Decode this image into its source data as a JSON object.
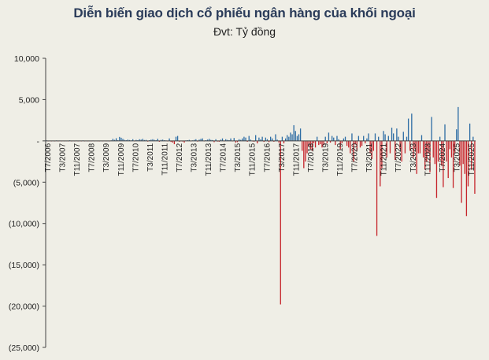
{
  "header": {
    "title": "Diễn biến giao dịch cổ phiếu ngân hàng của khối ngoại",
    "subtitle": "Đvt: Tỷ đồng"
  },
  "colors": {
    "background": "#efeee6",
    "positive": "#2e6da4",
    "negative": "#c6242b",
    "title": "#2b3c5a"
  },
  "chart_data": {
    "type": "bar",
    "title": "Diễn biến giao dịch cổ phiếu ngân hàng của khối ngoại",
    "subtitle": "Đvt: Tỷ đồng",
    "xlabel": "",
    "ylabel": "",
    "ylim": [
      -25000,
      10000
    ],
    "yticks": [
      10000,
      5000,
      0,
      -5000,
      -10000,
      -15000,
      -20000,
      -25000
    ],
    "ytick_labels": [
      "10,000",
      "5,000",
      "-",
      "(5,000)",
      "(10,000)",
      "(15,000)",
      "(20,000)",
      "(25,000)"
    ],
    "grid": false,
    "legend": "none",
    "x_tick_labels": [
      "T7/2006",
      "T3/2007",
      "T11/2007",
      "T7/2008",
      "T3/2009",
      "T11/2009",
      "T7/2010",
      "T3/2011",
      "T11/2011",
      "T7/2012",
      "T3/2013",
      "T11/2013",
      "T7/2014",
      "T3/2015",
      "T11/2015",
      "T7/2016",
      "T3/2017",
      "T11/2017",
      "T7/2018",
      "T3/2019",
      "T11/2019",
      "T7/2020",
      "T3/2021",
      "T11/2021",
      "T7/2022",
      "T3/2023",
      "T11/2023",
      "T7/2024",
      "T3/2025",
      "T11/2025"
    ],
    "series": [
      {
        "values": [
          60,
          -40,
          30,
          -60,
          20,
          -30,
          50,
          -20,
          40,
          -50,
          30,
          -10,
          20,
          -40,
          60,
          -30,
          20,
          -20,
          40,
          -60,
          30,
          -10,
          50,
          -40,
          20,
          -30,
          10,
          -50,
          40,
          -20,
          30,
          -10,
          -30,
          20,
          -50,
          30,
          -40,
          10,
          -20,
          60,
          250,
          120,
          320,
          80,
          480,
          380,
          250,
          120,
          80,
          150,
          100,
          60,
          200,
          -50,
          120,
          80,
          200,
          150,
          250,
          100,
          120,
          -80,
          80,
          150,
          200,
          120,
          80,
          260,
          -100,
          120,
          150,
          80,
          50,
          -60,
          300,
          -120,
          -200,
          -400,
          500,
          600,
          -100,
          -60,
          -80,
          -200,
          50,
          80,
          120,
          -30,
          60,
          120,
          200,
          -80,
          150,
          250,
          300,
          -60,
          80,
          150,
          250,
          120,
          100,
          -150,
          200,
          -80,
          -100,
          150,
          300,
          -60,
          200,
          120,
          80,
          300,
          -50,
          350,
          -200,
          -150,
          200,
          120,
          300,
          500,
          400,
          -100,
          600,
          150,
          -40,
          -100,
          700,
          -300,
          400,
          180,
          500,
          -120,
          400,
          200,
          -150,
          500,
          300,
          -100,
          800,
          150,
          -200,
          -19800,
          500,
          -300,
          300,
          700,
          500,
          1000,
          800,
          1900,
          1200,
          600,
          800,
          1500,
          -1200,
          -3300,
          -2500,
          -1500,
          -600,
          -1000,
          -1200,
          -300,
          -800,
          500,
          -500,
          -400,
          -800,
          -500,
          500,
          -300,
          1000,
          -200,
          600,
          400,
          -500,
          600,
          200,
          -1000,
          -300,
          300,
          500,
          -600,
          -800,
          -1500,
          900,
          -2500,
          -400,
          -1200,
          600,
          -800,
          -600,
          600,
          -300,
          300,
          900,
          -1500,
          -2200,
          -1200,
          900,
          -11500,
          500,
          -5500,
          -3300,
          1200,
          800,
          -2000,
          600,
          -1500,
          1600,
          900,
          -2300,
          1500,
          500,
          -1000,
          -2500,
          1100,
          -1500,
          500,
          2700,
          -1200,
          3300,
          -2000,
          -1000,
          -4000,
          -1500,
          -1500,
          700,
          -2000,
          -3500,
          -2500,
          -1500,
          -3800,
          2900,
          -2000,
          -2800,
          -6900,
          -2500,
          500,
          -3000,
          -5600,
          2000,
          -2500,
          -4500,
          -1000,
          -2000,
          -5700,
          -1500,
          1400,
          4100,
          -3000,
          -7500,
          -2800,
          -4000,
          -9100,
          -5500,
          2100,
          -3500,
          500,
          -6400
        ]
      }
    ]
  }
}
